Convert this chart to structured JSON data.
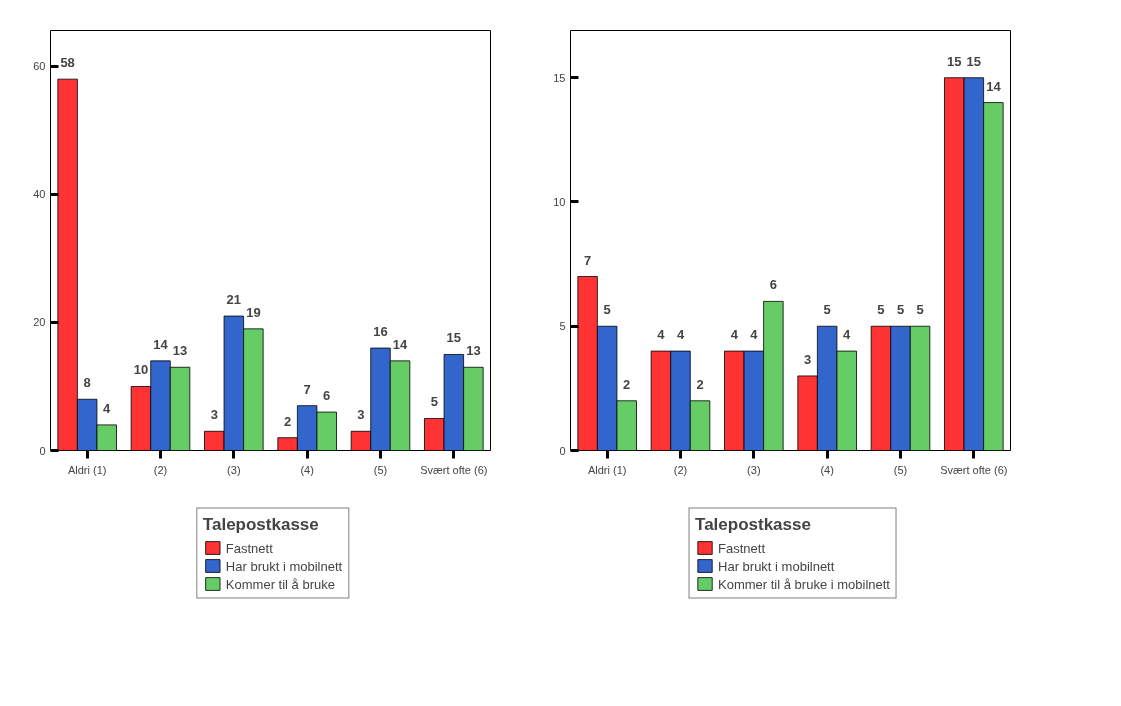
{
  "chart_data": [
    {
      "type": "bar",
      "categories": [
        "Aldri (1)",
        "(2)",
        "(3)",
        "(4)",
        "(5)",
        "Svært ofte (6)"
      ],
      "ylim": [
        0,
        65.6
      ],
      "yticks": [
        0,
        20,
        40,
        60
      ],
      "grid": false,
      "data_labels": true,
      "legend": "bottom",
      "legend_title": "Talepostkasse",
      "series": [
        {
          "name": "Fastnett",
          "color": "#ff3333",
          "values": [
            58,
            10,
            3,
            2,
            3,
            5
          ]
        },
        {
          "name": "Har brukt i mobilnett",
          "color": "#3366cc",
          "values": [
            8,
            14,
            21,
            7,
            16,
            15
          ]
        },
        {
          "name": "Kommer til å bruke",
          "color": "#66cc66",
          "values": [
            4,
            13,
            19,
            6,
            14,
            13
          ]
        }
      ]
    },
    {
      "type": "bar",
      "categories": [
        "Aldri (1)",
        "(2)",
        "(3)",
        "(4)",
        "(5)",
        "Svært ofte (6)"
      ],
      "ylim": [
        0,
        16.9
      ],
      "yticks": [
        0,
        5,
        10,
        15
      ],
      "grid": false,
      "data_labels": true,
      "legend": "bottom",
      "legend_title": "Talepostkasse",
      "series": [
        {
          "name": "Fastnett",
          "color": "#ff3333",
          "values": [
            7,
            4,
            4,
            3,
            5,
            15
          ]
        },
        {
          "name": "Har brukt i mobilnett",
          "color": "#3366cc",
          "values": [
            5,
            4,
            4,
            5,
            5,
            15
          ]
        },
        {
          "name": "Kommer til å bruke i mobilnett",
          "color": "#66cc66",
          "values": [
            2,
            2,
            6,
            4,
            5,
            14
          ]
        }
      ]
    }
  ]
}
